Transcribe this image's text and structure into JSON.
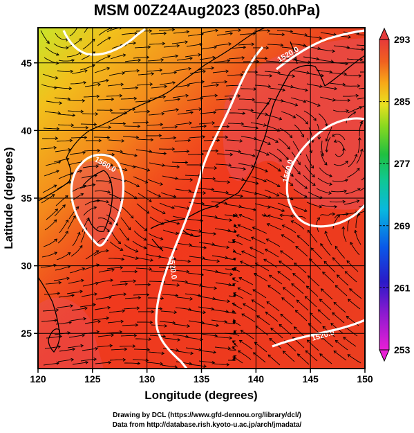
{
  "title": "MSM 00Z24Aug2023 (850.0hPa)",
  "xlabel": "Longitude (degrees)",
  "ylabel": "Latitude  (degrees)",
  "x_ticks": [
    "120",
    "125",
    "130",
    "135",
    "140",
    "145",
    "150"
  ],
  "y_ticks": [
    "25",
    "30",
    "35",
    "40",
    "45"
  ],
  "colorbar": {
    "min": 253,
    "max": 293,
    "ticks": [
      "253",
      "261",
      "269",
      "277",
      "285",
      "293"
    ]
  },
  "map_extent": {
    "lon": [
      120,
      150
    ],
    "lat": [
      22.4,
      47.6
    ]
  },
  "contours": [
    {
      "label": "1520.0"
    },
    {
      "label": "1520.0"
    },
    {
      "label": "1560.0"
    },
    {
      "label": "1560.0"
    },
    {
      "label": "1520.0"
    }
  ],
  "footer": {
    "line1": "Drawing by DCL (https://www.gfd-dennou.org/library/dcl/)",
    "line2": "Data from http://database.rish.kyoto-u.ac.jp/arch/jmadata/"
  }
}
